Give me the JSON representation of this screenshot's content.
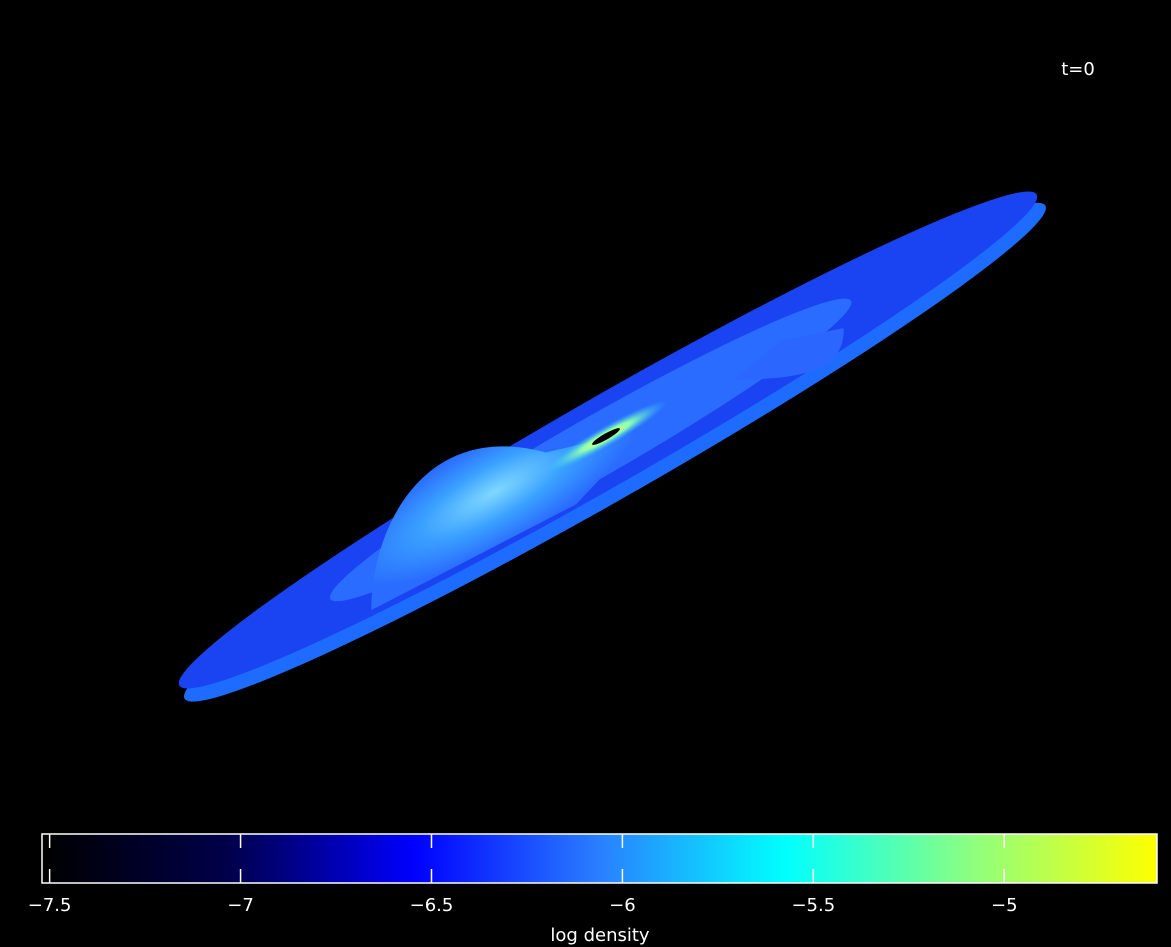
{
  "annotation": "t=0",
  "colorbar": {
    "label": "log density",
    "lim": [
      -7.52,
      -4.6
    ],
    "ticks": [
      {
        "value": -7.5,
        "label": "−7.5"
      },
      {
        "value": -7,
        "label": "−7"
      },
      {
        "value": -6.5,
        "label": "−6.5"
      },
      {
        "value": -6,
        "label": "−6"
      },
      {
        "value": -5.5,
        "label": "−5.5"
      },
      {
        "value": -5,
        "label": "−5"
      }
    ],
    "colormap": [
      "#000000",
      "#00004a",
      "#0000ff",
      "#2a7fff",
      "#00ffff",
      "#8cff80",
      "#ffff00"
    ]
  }
}
